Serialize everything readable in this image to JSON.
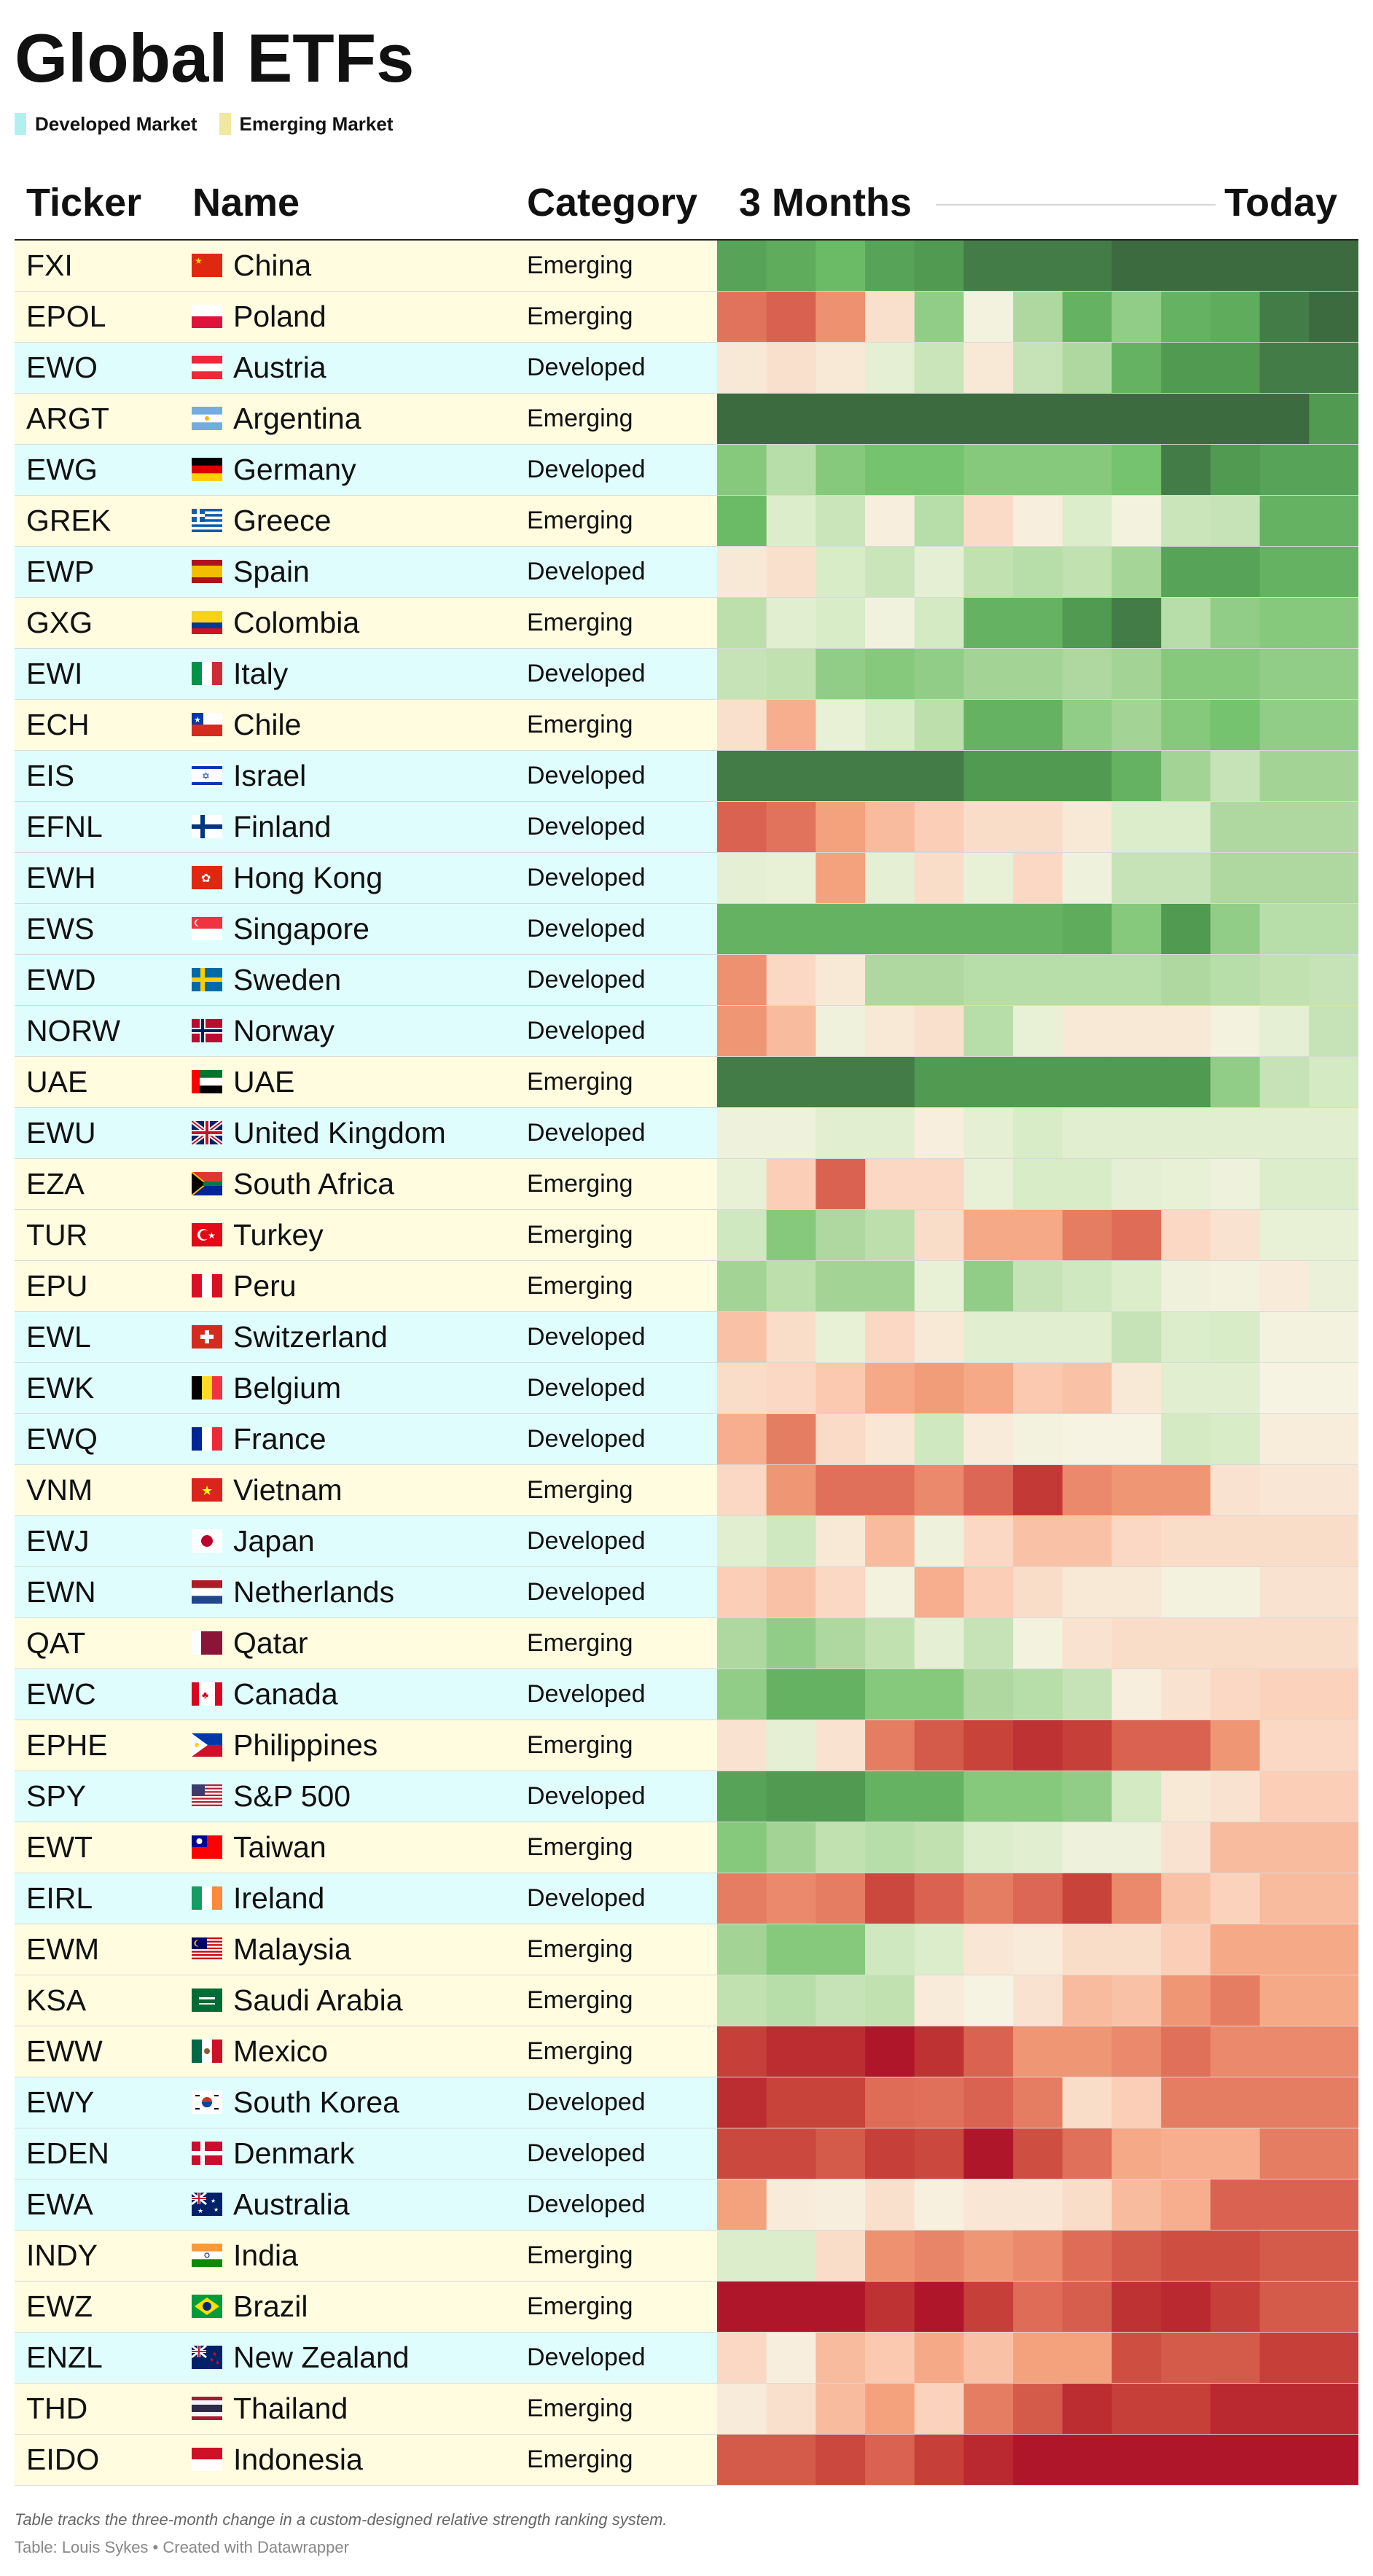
{
  "title": "Global ETFs",
  "legend": [
    {
      "label": "Developed Market",
      "color": "#b2f0f0"
    },
    {
      "label": "Emerging Market",
      "color": "#f0e8a0"
    }
  ],
  "row_colors": {
    "Developed": "#e0fdfd",
    "Emerging": "#fffce0"
  },
  "columns": {
    "ticker": "Ticker",
    "name": "Name",
    "category": "Category",
    "start": "3 Months",
    "end": "Today"
  },
  "footer": {
    "note": "Table tracks the three-month change in a custom-designed relative strength ranking system.",
    "credit": "Table: Louis Sykes • Created with Datawrapper"
  },
  "chart_data": {
    "type": "heatmap",
    "title": "Global ETFs",
    "x_start_label": "3 Months",
    "x_end_label": "Today",
    "color_scale": {
      "low": "#b0162a",
      "mid": "#f7f3e3",
      "high": "#3b6b3f"
    },
    "rows": [
      {
        "ticker": "FXI",
        "name": "China",
        "category": "Emerging",
        "flag": "cn",
        "values": [
          0.76,
          0.71,
          0.63,
          0.76,
          0.81,
          0.93,
          0.93,
          0.93,
          1,
          1,
          1,
          1,
          1
        ]
      },
      {
        "ticker": "EPOL",
        "name": "Poland",
        "category": "Emerging",
        "flag": "pl",
        "values": [
          -0.59,
          -0.67,
          -0.47,
          -0.12,
          0.48,
          0.03,
          0.38,
          0.67,
          0.48,
          0.67,
          0.71,
          0.93,
          1
        ]
      },
      {
        "ticker": "EWO",
        "name": "Austria",
        "category": "Developed",
        "flag": "at",
        "values": [
          -0.07,
          -0.12,
          -0.07,
          0.12,
          0.26,
          -0.07,
          0.28,
          0.38,
          0.67,
          0.81,
          0.81,
          0.93,
          0.93
        ]
      },
      {
        "ticker": "ARGT",
        "name": "Argentina",
        "category": "Emerging",
        "flag": "ar",
        "values": [
          1,
          1,
          1,
          1,
          1,
          1,
          1,
          1,
          1,
          1,
          1,
          1,
          0.81
        ]
      },
      {
        "ticker": "EWG",
        "name": "Germany",
        "category": "Developed",
        "flag": "de",
        "values": [
          0.52,
          0.34,
          0.52,
          0.58,
          0.58,
          0.52,
          0.52,
          0.52,
          0.58,
          0.93,
          0.81,
          0.76,
          0.76
        ]
      },
      {
        "ticker": "GREK",
        "name": "Greece",
        "category": "Emerging",
        "flag": "gr",
        "values": [
          0.63,
          0.18,
          0.26,
          -0.03,
          0.34,
          -0.15,
          -0.03,
          0.18,
          0.03,
          0.26,
          0.28,
          0.67,
          0.67
        ]
      },
      {
        "ticker": "EWP",
        "name": "Spain",
        "category": "Developed",
        "flag": "es",
        "values": [
          -0.07,
          -0.12,
          0.2,
          0.26,
          0.12,
          0.3,
          0.34,
          0.3,
          0.41,
          0.76,
          0.76,
          0.67,
          0.67
        ]
      },
      {
        "ticker": "GXG",
        "name": "Colombia",
        "category": "Emerging",
        "flag": "co",
        "values": [
          0.32,
          0.14,
          0.2,
          0.04,
          0.22,
          0.67,
          0.67,
          0.81,
          0.93,
          0.34,
          0.48,
          0.52,
          0.52
        ]
      },
      {
        "ticker": "EWI",
        "name": "Italy",
        "category": "Developed",
        "flag": "it",
        "values": [
          0.28,
          0.3,
          0.48,
          0.52,
          0.48,
          0.42,
          0.42,
          0.38,
          0.42,
          0.52,
          0.52,
          0.48,
          0.48
        ]
      },
      {
        "ticker": "ECH",
        "name": "Chile",
        "category": "Emerging",
        "flag": "cl",
        "values": [
          -0.12,
          -0.35,
          0.1,
          0.2,
          0.32,
          0.67,
          0.67,
          0.48,
          0.42,
          0.52,
          0.58,
          0.48,
          0.48
        ]
      },
      {
        "ticker": "EIS",
        "name": "Israel",
        "category": "Developed",
        "flag": "il",
        "values": [
          0.93,
          0.93,
          0.93,
          0.93,
          0.93,
          0.81,
          0.81,
          0.81,
          0.67,
          0.42,
          0.28,
          0.42,
          0.42
        ]
      },
      {
        "ticker": "EFNL",
        "name": "Finland",
        "category": "Developed",
        "flag": "fi",
        "values": [
          -0.66,
          -0.59,
          -0.4,
          -0.3,
          -0.22,
          -0.14,
          -0.14,
          -0.07,
          0.18,
          0.18,
          0.38,
          0.38,
          0.38
        ]
      },
      {
        "ticker": "EWH",
        "name": "Hong Kong",
        "category": "Developed",
        "flag": "hk",
        "values": [
          0.12,
          0.1,
          -0.4,
          0.12,
          -0.14,
          0.1,
          -0.17,
          0.06,
          0.28,
          0.28,
          0.38,
          0.38,
          0.38
        ]
      },
      {
        "ticker": "EWS",
        "name": "Singapore",
        "category": "Developed",
        "flag": "sg",
        "values": [
          0.67,
          0.67,
          0.67,
          0.67,
          0.67,
          0.67,
          0.67,
          0.71,
          0.52,
          0.81,
          0.48,
          0.34,
          0.34
        ]
      },
      {
        "ticker": "EWD",
        "name": "Sweden",
        "category": "Developed",
        "flag": "se",
        "values": [
          -0.47,
          -0.17,
          -0.07,
          0.38,
          0.38,
          0.34,
          0.34,
          0.34,
          0.34,
          0.38,
          0.34,
          0.3,
          0.28
        ]
      },
      {
        "ticker": "NORW",
        "name": "Norway",
        "category": "Developed",
        "flag": "no",
        "values": [
          -0.45,
          -0.3,
          0.05,
          -0.07,
          -0.12,
          0.34,
          0.1,
          -0.07,
          -0.07,
          -0.07,
          0.03,
          0.12,
          0.28
        ]
      },
      {
        "ticker": "UAE",
        "name": "UAE",
        "category": "Emerging",
        "flag": "ae",
        "values": [
          0.93,
          0.93,
          0.93,
          0.93,
          0.81,
          0.81,
          0.81,
          0.81,
          0.81,
          0.81,
          0.48,
          0.28,
          0.22
        ]
      },
      {
        "ticker": "EWU",
        "name": "United Kingdom",
        "category": "Developed",
        "flag": "gb",
        "values": [
          0.06,
          0.06,
          0.14,
          0.14,
          -0.03,
          0.12,
          0.2,
          0.14,
          0.14,
          0.14,
          0.14,
          0.14,
          0.14
        ]
      },
      {
        "ticker": "EZA",
        "name": "South Africa",
        "category": "Emerging",
        "flag": "za",
        "values": [
          0.1,
          -0.22,
          -0.66,
          -0.17,
          -0.17,
          0.1,
          0.2,
          0.2,
          0.12,
          0.1,
          0.06,
          0.18,
          0.18
        ]
      },
      {
        "ticker": "TUR",
        "name": "Turkey",
        "category": "Emerging",
        "flag": "tr",
        "values": [
          0.24,
          0.52,
          0.38,
          0.32,
          -0.14,
          -0.37,
          -0.37,
          -0.55,
          -0.62,
          -0.17,
          -0.1,
          0.1,
          0.1
        ]
      },
      {
        "ticker": "EPU",
        "name": "Peru",
        "category": "Emerging",
        "flag": "pe",
        "values": [
          0.42,
          0.32,
          0.42,
          0.42,
          0.1,
          0.48,
          0.28,
          0.24,
          0.18,
          0.05,
          0.03,
          -0.05,
          0.08
        ]
      },
      {
        "ticker": "EWL",
        "name": "Switzerland",
        "category": "Developed",
        "flag": "ch",
        "values": [
          -0.27,
          -0.14,
          0.1,
          -0.17,
          -0.07,
          0.14,
          0.14,
          0.14,
          0.28,
          0.18,
          0.2,
          0.03,
          0.03
        ]
      },
      {
        "ticker": "EWK",
        "name": "Belgium",
        "category": "Developed",
        "flag": "be",
        "values": [
          -0.14,
          -0.17,
          -0.24,
          -0.37,
          -0.42,
          -0.37,
          -0.24,
          -0.27,
          -0.07,
          0.14,
          0.14,
          0,
          0
        ]
      },
      {
        "ticker": "EWQ",
        "name": "France",
        "category": "Developed",
        "flag": "fr",
        "values": [
          -0.35,
          -0.55,
          -0.15,
          -0.08,
          0.24,
          -0.05,
          0.03,
          0,
          0,
          0.22,
          0.2,
          -0.04,
          -0.04
        ]
      },
      {
        "ticker": "VNM",
        "name": "Vietnam",
        "category": "Emerging",
        "flag": "vn",
        "values": [
          -0.17,
          -0.45,
          -0.6,
          -0.6,
          -0.5,
          -0.64,
          -0.85,
          -0.5,
          -0.45,
          -0.45,
          -0.1,
          -0.08,
          -0.08
        ]
      },
      {
        "ticker": "EWJ",
        "name": "Japan",
        "category": "Developed",
        "flag": "jp",
        "values": [
          0.14,
          0.24,
          -0.07,
          -0.3,
          0.06,
          -0.17,
          -0.27,
          -0.27,
          -0.17,
          -0.14,
          -0.14,
          -0.14,
          -0.14
        ]
      },
      {
        "ticker": "EWN",
        "name": "Netherlands",
        "category": "Developed",
        "flag": "nl",
        "values": [
          -0.22,
          -0.27,
          -0.17,
          0.03,
          -0.35,
          -0.22,
          -0.14,
          -0.07,
          -0.07,
          0.03,
          0.03,
          -0.1,
          -0.1
        ]
      },
      {
        "ticker": "QAT",
        "name": "Qatar",
        "category": "Emerging",
        "flag": "qa",
        "values": [
          0.38,
          0.48,
          0.38,
          0.3,
          0.12,
          0.28,
          0.03,
          -0.1,
          -0.14,
          -0.14,
          -0.14,
          -0.14,
          -0.14
        ]
      },
      {
        "ticker": "EWC",
        "name": "Canada",
        "category": "Developed",
        "flag": "ca",
        "values": [
          0.48,
          0.67,
          0.67,
          0.52,
          0.52,
          0.38,
          0.34,
          0.28,
          -0.03,
          -0.1,
          -0.17,
          -0.2,
          -0.2
        ]
      },
      {
        "ticker": "EPHE",
        "name": "Philippines",
        "category": "Emerging",
        "flag": "ph",
        "values": [
          -0.1,
          0.12,
          -0.1,
          -0.55,
          -0.7,
          -0.8,
          -0.88,
          -0.82,
          -0.66,
          -0.66,
          -0.45,
          -0.17,
          -0.17
        ]
      },
      {
        "ticker": "SPY",
        "name": "S&P 500",
        "category": "Developed",
        "flag": "us",
        "values": [
          0.76,
          0.81,
          0.81,
          0.67,
          0.67,
          0.52,
          0.52,
          0.48,
          0.22,
          -0.07,
          -0.1,
          -0.22,
          -0.22
        ]
      },
      {
        "ticker": "EWT",
        "name": "Taiwan",
        "category": "Emerging",
        "flag": "tw",
        "values": [
          0.52,
          0.42,
          0.3,
          0.34,
          0.3,
          0.18,
          0.14,
          0.06,
          0.06,
          -0.1,
          -0.3,
          -0.3,
          -0.3
        ]
      },
      {
        "ticker": "EIRL",
        "name": "Ireland",
        "category": "Developed",
        "flag": "ie",
        "values": [
          -0.55,
          -0.5,
          -0.55,
          -0.78,
          -0.66,
          -0.55,
          -0.64,
          -0.8,
          -0.5,
          -0.27,
          -0.2,
          -0.3,
          -0.3
        ]
      },
      {
        "ticker": "EWM",
        "name": "Malaysia",
        "category": "Emerging",
        "flag": "my",
        "values": [
          0.42,
          0.52,
          0.52,
          0.24,
          0.18,
          -0.08,
          -0.05,
          -0.14,
          -0.14,
          -0.22,
          -0.37,
          -0.37,
          -0.37
        ]
      },
      {
        "ticker": "KSA",
        "name": "Saudi Arabia",
        "category": "Emerging",
        "flag": "sa",
        "values": [
          0.3,
          0.34,
          0.28,
          0.3,
          -0.05,
          0,
          -0.1,
          -0.3,
          -0.27,
          -0.45,
          -0.55,
          -0.37,
          -0.37
        ]
      },
      {
        "ticker": "EWW",
        "name": "Mexico",
        "category": "Emerging",
        "flag": "mx",
        "values": [
          -0.82,
          -0.9,
          -0.9,
          -1,
          -0.88,
          -0.66,
          -0.45,
          -0.45,
          -0.5,
          -0.6,
          -0.5,
          -0.5,
          -0.5
        ]
      },
      {
        "ticker": "EWY",
        "name": "South Korea",
        "category": "Developed",
        "flag": "kr",
        "values": [
          -0.9,
          -0.8,
          -0.8,
          -0.62,
          -0.6,
          -0.66,
          -0.55,
          -0.14,
          -0.22,
          -0.55,
          -0.55,
          -0.55,
          -0.55
        ]
      },
      {
        "ticker": "EDEN",
        "name": "Denmark",
        "category": "Developed",
        "flag": "dk",
        "values": [
          -0.78,
          -0.78,
          -0.7,
          -0.82,
          -0.78,
          -1,
          -0.75,
          -0.6,
          -0.37,
          -0.35,
          -0.35,
          -0.55,
          -0.55
        ]
      },
      {
        "ticker": "EWA",
        "name": "Australia",
        "category": "Developed",
        "flag": "au",
        "values": [
          -0.4,
          -0.05,
          -0.03,
          -0.12,
          -0.02,
          -0.08,
          -0.08,
          -0.14,
          -0.3,
          -0.35,
          -0.66,
          -0.66,
          -0.66
        ]
      },
      {
        "ticker": "INDY",
        "name": "India",
        "category": "Emerging",
        "flag": "in",
        "values": [
          0.18,
          0.18,
          -0.14,
          -0.47,
          -0.52,
          -0.45,
          -0.5,
          -0.62,
          -0.7,
          -0.75,
          -0.75,
          -0.7,
          -0.7
        ]
      },
      {
        "ticker": "EWZ",
        "name": "Brazil",
        "category": "Emerging",
        "flag": "br",
        "values": [
          -1,
          -1,
          -1,
          -0.88,
          -1,
          -0.82,
          -0.62,
          -0.68,
          -0.88,
          -0.92,
          -0.82,
          -0.7,
          -0.7
        ]
      },
      {
        "ticker": "ENZL",
        "name": "New Zealand",
        "category": "Developed",
        "flag": "nz",
        "values": [
          -0.17,
          -0.03,
          -0.3,
          -0.24,
          -0.37,
          -0.27,
          -0.4,
          -0.4,
          -0.75,
          -0.7,
          -0.7,
          -0.82,
          -0.82
        ]
      },
      {
        "ticker": "THD",
        "name": "Thailand",
        "category": "Emerging",
        "flag": "th",
        "values": [
          -0.05,
          -0.12,
          -0.3,
          -0.4,
          -0.2,
          -0.55,
          -0.7,
          -0.9,
          -0.82,
          -0.82,
          -0.92,
          -0.92,
          -0.92
        ]
      },
      {
        "ticker": "EIDO",
        "name": "Indonesia",
        "category": "Emerging",
        "flag": "id",
        "values": [
          -0.7,
          -0.7,
          -0.78,
          -0.66,
          -0.82,
          -0.92,
          -1,
          -1,
          -1,
          -1,
          -1,
          -1,
          -1
        ]
      }
    ]
  }
}
